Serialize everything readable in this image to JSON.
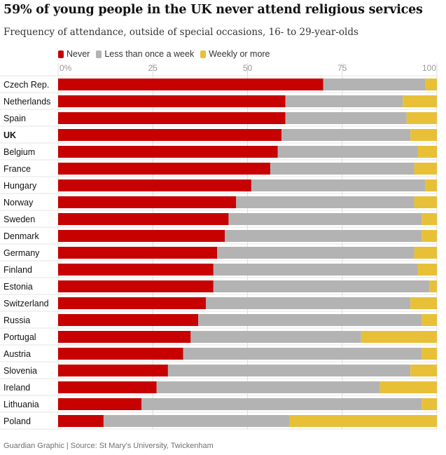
{
  "title": "59% of young people in the UK never attend religious services",
  "subtitle": "Frequency of attendance, outside of special occasions, 16- to 29-year-olds",
  "source": "Guardian Graphic | Source: St Mary's University, Twickenham",
  "legend": [
    {
      "label": "Never",
      "color": "#c70000"
    },
    {
      "label": "Less than once a week",
      "color": "#b3b3b3"
    },
    {
      "label": "Weekly or more",
      "color": "#e8c038"
    }
  ],
  "chart_data": {
    "type": "bar",
    "orientation": "horizontal",
    "stacked": true,
    "categories": [
      "Czech Rep.",
      "Netherlands",
      "Spain",
      "UK",
      "Belgium",
      "France",
      "Hungary",
      "Norway",
      "Sweden",
      "Denmark",
      "Germany",
      "Finland",
      "Estonia",
      "Switzerland",
      "Russia",
      "Portugal",
      "Austria",
      "Slovenia",
      "Ireland",
      "Lithuania",
      "Poland"
    ],
    "highlight": "UK",
    "series": [
      {
        "name": "Never",
        "color": "#c70000",
        "values": [
          70,
          60,
          60,
          59,
          58,
          56,
          51,
          47,
          45,
          44,
          42,
          41,
          41,
          39,
          37,
          35,
          33,
          29,
          26,
          22,
          12
        ]
      },
      {
        "name": "Less than once a week",
        "color": "#b3b3b3",
        "values": [
          27,
          31,
          32,
          34,
          37,
          38,
          46,
          47,
          51,
          52,
          52,
          54,
          57,
          54,
          59,
          45,
          63,
          64,
          59,
          74,
          49
        ]
      },
      {
        "name": "Weekly or more",
        "color": "#e8c038",
        "values": [
          3,
          9,
          8,
          7,
          5,
          6,
          3,
          6,
          4,
          4,
          6,
          5,
          2,
          7,
          4,
          20,
          4,
          7,
          15,
          4,
          39
        ]
      }
    ],
    "xlim": [
      0,
      100
    ],
    "xticks": [
      "0%",
      "25",
      "50",
      "75",
      "100"
    ],
    "xlabel": "",
    "ylabel": "",
    "legend_position": "top-left",
    "grid": true
  }
}
